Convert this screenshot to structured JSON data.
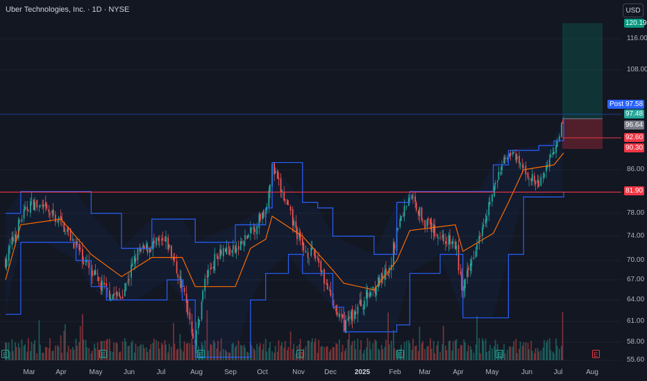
{
  "header": {
    "title": "Uber Technologies, Inc. · 1D · NYSE",
    "currency": "USD"
  },
  "price_scale": {
    "ticks": [
      "116.00",
      "108.00",
      "86.00",
      "78.00",
      "74.00",
      "70.00",
      "67.00",
      "64.00",
      "61.00",
      "58.00",
      "55.60"
    ]
  },
  "time_scale": {
    "ticks": [
      "Mar",
      "Apr",
      "May",
      "Jun",
      "Jul",
      "Aug",
      "Sep",
      "Oct",
      "Nov",
      "Dec",
      "2025",
      "Feb",
      "Mar",
      "Apr",
      "May",
      "Jun",
      "Jul",
      "Aug"
    ]
  },
  "price_tags": {
    "target": {
      "value": "120.19",
      "color": "#089981"
    },
    "post_label": "Post",
    "post": {
      "value": "97.58",
      "color": "#2962ff"
    },
    "last": {
      "value": "97.48",
      "color": "#26a69a"
    },
    "entry": {
      "value": "96.64",
      "color": "#787b86"
    },
    "stop_line": {
      "value": "92.60",
      "color": "#f23645"
    },
    "stop": {
      "value": "90.30",
      "color": "#f23645"
    },
    "support": {
      "value": "81.90",
      "color": "#f23645"
    }
  },
  "earnings_marker_label": "E",
  "colors": {
    "background": "#131722",
    "up": "#26a69a",
    "down": "#ef5350",
    "band": "#2962ff",
    "midline": "#ff6d00",
    "horizontal_line": "#f23645",
    "post_line": "#2962ff"
  },
  "chart_data": {
    "type": "candlestick",
    "symbol": "Uber Technologies, Inc.",
    "interval": "1D",
    "exchange": "NYSE",
    "x_range": [
      "2024-02",
      "2025-08"
    ],
    "y_range": [
      55.6,
      121
    ],
    "close_path": [
      [
        "2024-02-12",
        70
      ],
      [
        "2024-02-26",
        77
      ],
      [
        "2024-03-06",
        80
      ],
      [
        "2024-03-20",
        78.5
      ],
      [
        "2024-04-03",
        76.5
      ],
      [
        "2024-04-17",
        72.5
      ],
      [
        "2024-05-01",
        68
      ],
      [
        "2024-05-15",
        65.2
      ],
      [
        "2024-05-29",
        64.3
      ],
      [
        "2024-06-12",
        71
      ],
      [
        "2024-06-26",
        72.5
      ],
      [
        "2024-07-10",
        73
      ],
      [
        "2024-07-24",
        66
      ],
      [
        "2024-08-05",
        58
      ],
      [
        "2024-08-14",
        67
      ],
      [
        "2024-08-28",
        72
      ],
      [
        "2024-09-11",
        71.5
      ],
      [
        "2024-09-25",
        74.5
      ],
      [
        "2024-10-09",
        79
      ],
      [
        "2024-10-15",
        86.5
      ],
      [
        "2024-10-30",
        78.5
      ],
      [
        "2024-11-12",
        72
      ],
      [
        "2024-11-26",
        70.5
      ],
      [
        "2024-12-10",
        63
      ],
      [
        "2024-12-20",
        60.5
      ],
      [
        "2025-01-03",
        63
      ],
      [
        "2025-01-17",
        66
      ],
      [
        "2025-01-31",
        68
      ],
      [
        "2025-02-07",
        75
      ],
      [
        "2025-02-19",
        81.5
      ],
      [
        "2025-03-05",
        76.5
      ],
      [
        "2025-03-19",
        74
      ],
      [
        "2025-04-02",
        72.5
      ],
      [
        "2025-04-09",
        65
      ],
      [
        "2025-04-23",
        74
      ],
      [
        "2025-05-07",
        82
      ],
      [
        "2025-05-21",
        90
      ],
      [
        "2025-06-04",
        86
      ],
      [
        "2025-06-18",
        83
      ],
      [
        "2025-07-02",
        90.5
      ],
      [
        "2025-07-11",
        96.7
      ]
    ],
    "donchian_upper": [
      [
        "2024-02-12",
        78
      ],
      [
        "2024-02-26",
        82
      ],
      [
        "2024-04-17",
        82
      ],
      [
        "2024-05-01",
        78
      ],
      [
        "2024-05-29",
        72
      ],
      [
        "2024-06-26",
        77
      ],
      [
        "2024-07-24",
        77
      ],
      [
        "2024-08-05",
        73
      ],
      [
        "2024-09-11",
        76
      ],
      [
        "2024-10-09",
        79
      ],
      [
        "2024-10-15",
        87.5
      ],
      [
        "2024-11-12",
        80
      ],
      [
        "2024-11-26",
        79
      ],
      [
        "2024-12-10",
        74
      ],
      [
        "2025-01-17",
        71
      ],
      [
        "2025-02-07",
        80
      ],
      [
        "2025-02-19",
        82
      ],
      [
        "2025-04-09",
        82
      ],
      [
        "2025-04-23",
        82
      ],
      [
        "2025-05-07",
        87
      ],
      [
        "2025-05-21",
        90
      ],
      [
        "2025-06-18",
        91
      ],
      [
        "2025-07-02",
        92
      ],
      [
        "2025-07-11",
        97
      ]
    ],
    "donchian_lower": [
      [
        "2024-02-12",
        62
      ],
      [
        "2024-02-26",
        73
      ],
      [
        "2024-03-20",
        73
      ],
      [
        "2024-04-17",
        70
      ],
      [
        "2024-05-01",
        66
      ],
      [
        "2024-05-15",
        64
      ],
      [
        "2024-06-12",
        64
      ],
      [
        "2024-07-10",
        67
      ],
      [
        "2024-07-24",
        64
      ],
      [
        "2024-08-05",
        56
      ],
      [
        "2024-09-11",
        56
      ],
      [
        "2024-09-25",
        64
      ],
      [
        "2024-10-09",
        68
      ],
      [
        "2024-10-30",
        71
      ],
      [
        "2024-11-12",
        68
      ],
      [
        "2024-12-10",
        63
      ],
      [
        "2024-12-20",
        59.5
      ],
      [
        "2025-01-31",
        59.5
      ],
      [
        "2025-02-07",
        60.5
      ],
      [
        "2025-02-19",
        68
      ],
      [
        "2025-03-19",
        71
      ],
      [
        "2025-04-09",
        61.5
      ],
      [
        "2025-05-07",
        61.5
      ],
      [
        "2025-05-21",
        71
      ],
      [
        "2025-06-04",
        81
      ],
      [
        "2025-07-11",
        82
      ]
    ],
    "donchian_middle": [
      [
        "2024-02-12",
        67
      ],
      [
        "2024-02-26",
        76
      ],
      [
        "2024-04-03",
        77
      ],
      [
        "2024-05-01",
        71
      ],
      [
        "2024-05-29",
        67.5
      ],
      [
        "2024-06-26",
        70.5
      ],
      [
        "2024-07-24",
        70.5
      ],
      [
        "2024-08-05",
        66
      ],
      [
        "2024-09-11",
        66
      ],
      [
        "2024-09-25",
        72
      ],
      [
        "2024-10-09",
        73.5
      ],
      [
        "2024-10-15",
        77.5
      ],
      [
        "2024-11-12",
        74
      ],
      [
        "2024-12-10",
        68.5
      ],
      [
        "2024-12-20",
        66.5
      ],
      [
        "2025-01-17",
        65.5
      ],
      [
        "2025-02-07",
        70
      ],
      [
        "2025-02-19",
        75
      ],
      [
        "2025-04-02",
        76
      ],
      [
        "2025-04-09",
        71.5
      ],
      [
        "2025-05-07",
        74.5
      ],
      [
        "2025-05-21",
        80
      ],
      [
        "2025-06-04",
        86
      ],
      [
        "2025-06-18",
        86.5
      ],
      [
        "2025-07-02",
        87
      ],
      [
        "2025-07-11",
        89.5
      ]
    ],
    "horizontal_lines": [
      81.9,
      97.58
    ],
    "position": {
      "entry": 96.64,
      "target": 120.19,
      "stop": 90.3
    },
    "earnings_dates": [
      "2024-02-07",
      "2024-05-08",
      "2024-08-06",
      "2024-10-31",
      "2025-02-05",
      "2025-05-07",
      "2025-08-06"
    ]
  }
}
